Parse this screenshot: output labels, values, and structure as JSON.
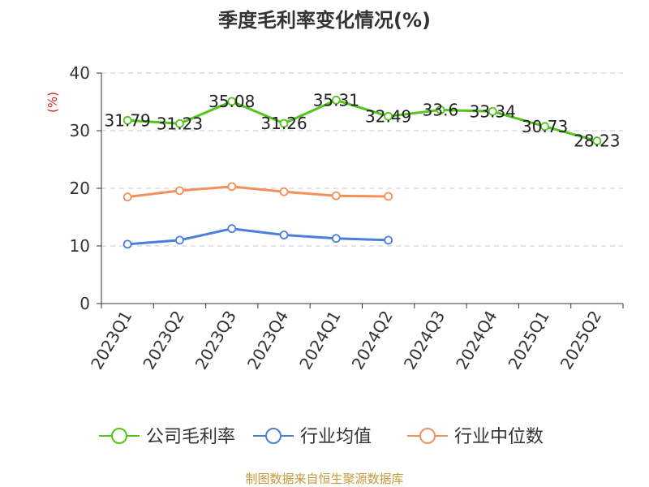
{
  "chart_data": {
    "type": "line",
    "title": "季度毛利率变化情况(%)",
    "ylabel": "(%)",
    "xlabel": "",
    "categories": [
      "2023Q1",
      "2023Q2",
      "2023Q3",
      "2023Q4",
      "2024Q1",
      "2024Q2",
      "2024Q3",
      "2024Q4",
      "2025Q1",
      "2025Q2"
    ],
    "y_ticks": [
      "0",
      "10",
      "20",
      "30",
      "40"
    ],
    "ylim": [
      0,
      40
    ],
    "grid": true,
    "legend_position": "bottom",
    "series": [
      {
        "name": "公司毛利率",
        "color": "#52c41a",
        "values": [
          31.79,
          31.23,
          35.08,
          31.26,
          35.31,
          32.49,
          33.6,
          33.34,
          30.73,
          28.23
        ],
        "labels": [
          "31.79",
          "31.23",
          "35.08",
          "31.26",
          "35.31",
          "32.49",
          "33.6",
          "33.34",
          "30.73",
          "28.23"
        ]
      },
      {
        "name": "行业均值",
        "color": "#4a7fdb",
        "values": [
          10.3,
          11.0,
          13.0,
          11.9,
          11.3,
          11.0,
          null,
          null,
          null,
          null
        ]
      },
      {
        "name": "行业中位数",
        "color": "#f5905a",
        "values": [
          18.5,
          19.6,
          20.3,
          19.4,
          18.7,
          18.6,
          null,
          null,
          null,
          null
        ]
      }
    ]
  },
  "footer": "制图数据来自恒生聚源数据库"
}
